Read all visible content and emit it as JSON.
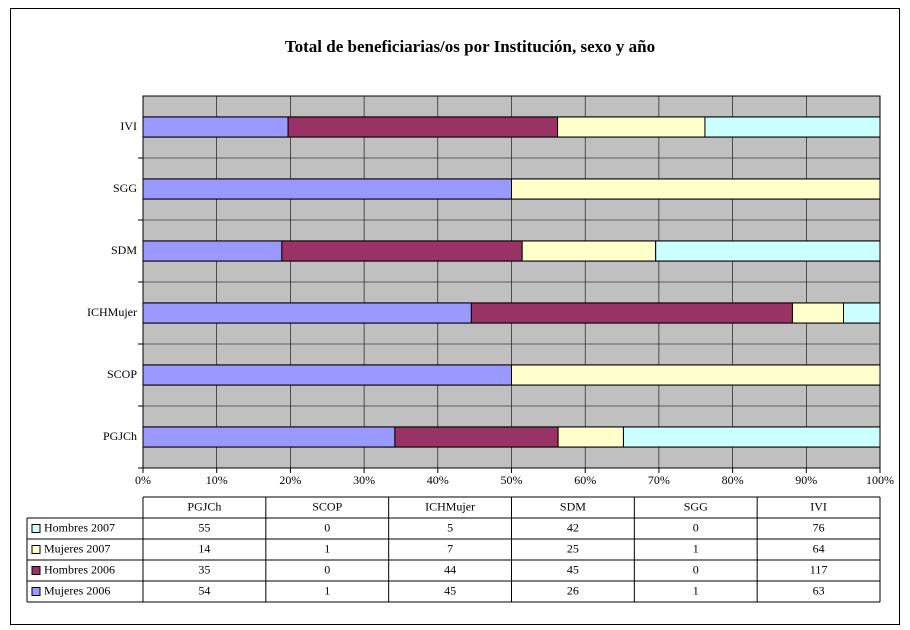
{
  "chart_data": {
    "type": "bar100h",
    "title": "Total de beneficiarias/os por Institución, sexo y año",
    "categories": [
      "PGJCh",
      "SCOP",
      "ICHMujer",
      "SDM",
      "SGG",
      "IVI"
    ],
    "series": [
      {
        "name": "Mujeres 2006",
        "color": "#9999ff",
        "values": [
          54,
          1,
          45,
          26,
          1,
          63
        ]
      },
      {
        "name": "Hombres 2006",
        "color": "#993366",
        "values": [
          35,
          0,
          44,
          45,
          0,
          117
        ]
      },
      {
        "name": "Mujeres 2007",
        "color": "#ffffcc",
        "values": [
          14,
          1,
          7,
          25,
          1,
          64
        ]
      },
      {
        "name": "Hombres 2007",
        "color": "#ccffff",
        "values": [
          55,
          0,
          5,
          42,
          0,
          76
        ]
      }
    ],
    "xlim": [
      0,
      100
    ],
    "xticks": [
      {
        "value": 0,
        "label": "0%"
      },
      {
        "value": 10,
        "label": "10%"
      },
      {
        "value": 20,
        "label": "20%"
      },
      {
        "value": 30,
        "label": "30%"
      },
      {
        "value": 40,
        "label": "40%"
      },
      {
        "value": 50,
        "label": "50%"
      },
      {
        "value": 60,
        "label": "60%"
      },
      {
        "value": 70,
        "label": "70%"
      },
      {
        "value": 80,
        "label": "80%"
      },
      {
        "value": 90,
        "label": "90%"
      },
      {
        "value": 100,
        "label": "100%"
      }
    ],
    "grid": true,
    "plot_background": "#c0c0c0"
  }
}
